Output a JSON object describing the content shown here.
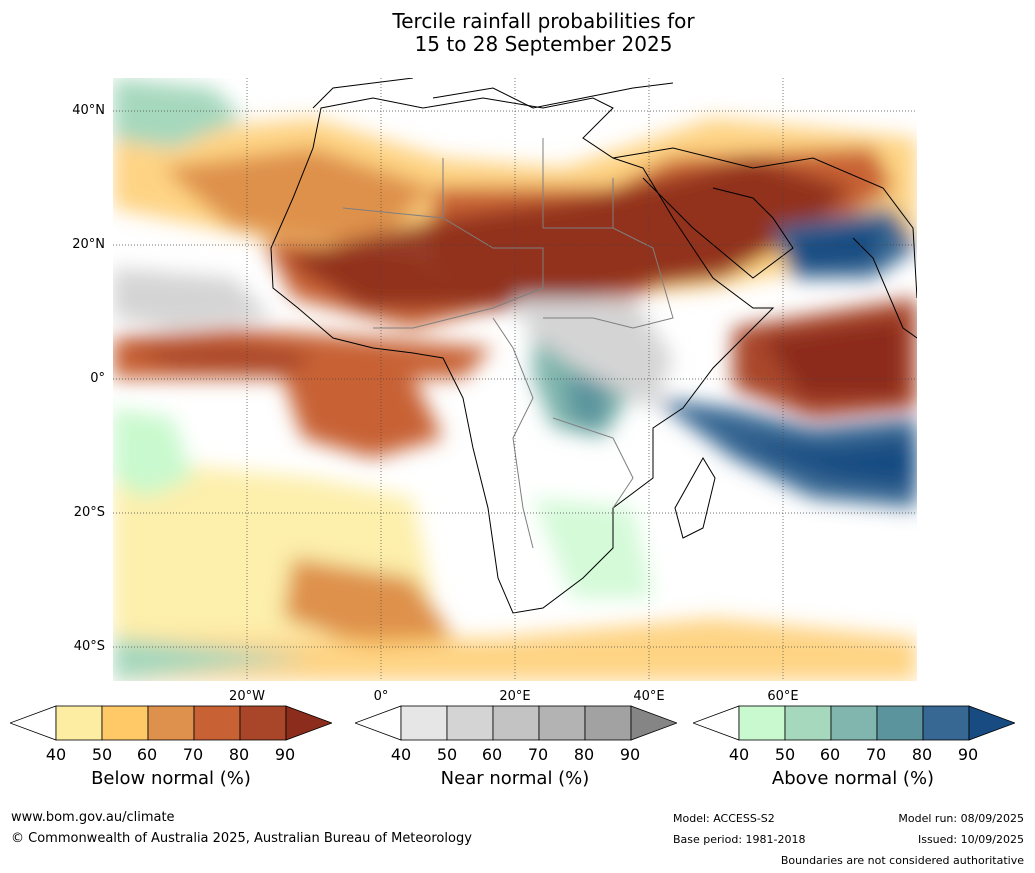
{
  "title": {
    "line1": "Tercile rainfall probabilities for",
    "line2": "15 to 28 September 2025"
  },
  "latitude_labels": [
    "40°N",
    "20°N",
    "0°",
    "20°S",
    "40°S"
  ],
  "longitude_labels": [
    "20°W",
    "0°",
    "20°E",
    "40°E",
    "60°E"
  ],
  "colorbars": [
    {
      "label": "Below normal (%)",
      "ticks": [
        "40",
        "50",
        "60",
        "70",
        "80",
        "90"
      ],
      "colors": [
        "#ffffff",
        "#fdeda3",
        "#fec966",
        "#de914c",
        "#c86235",
        "#a9462a",
        "#8c2c1c"
      ]
    },
    {
      "label": "Near normal (%)",
      "ticks": [
        "40",
        "50",
        "60",
        "70",
        "80",
        "90"
      ],
      "colors": [
        "#ffffff",
        "#e6e6e6",
        "#d4d4d4",
        "#c3c3c3",
        "#b3b3b3",
        "#a2a2a2",
        "#858585"
      ]
    },
    {
      "label": "Above normal (%)",
      "ticks": [
        "40",
        "50",
        "60",
        "70",
        "80",
        "90"
      ],
      "colors": [
        "#ffffff",
        "#c9f9ce",
        "#a6d8bd",
        "#80b6ad",
        "#5c949e",
        "#376893",
        "#174b82"
      ]
    }
  ],
  "footer": {
    "website": "www.bom.gov.au/climate",
    "copyright": "© Commonwealth of Australia 2025, Australian Bureau of Meteorology",
    "model": "Model: ACCESS-S2",
    "base_period": "Base period: 1981-2018",
    "model_run": "Model run: 08/09/2025",
    "issued": "Issued: 10/09/2025",
    "disclaimer": "Boundaries are not considered authoritative"
  }
}
